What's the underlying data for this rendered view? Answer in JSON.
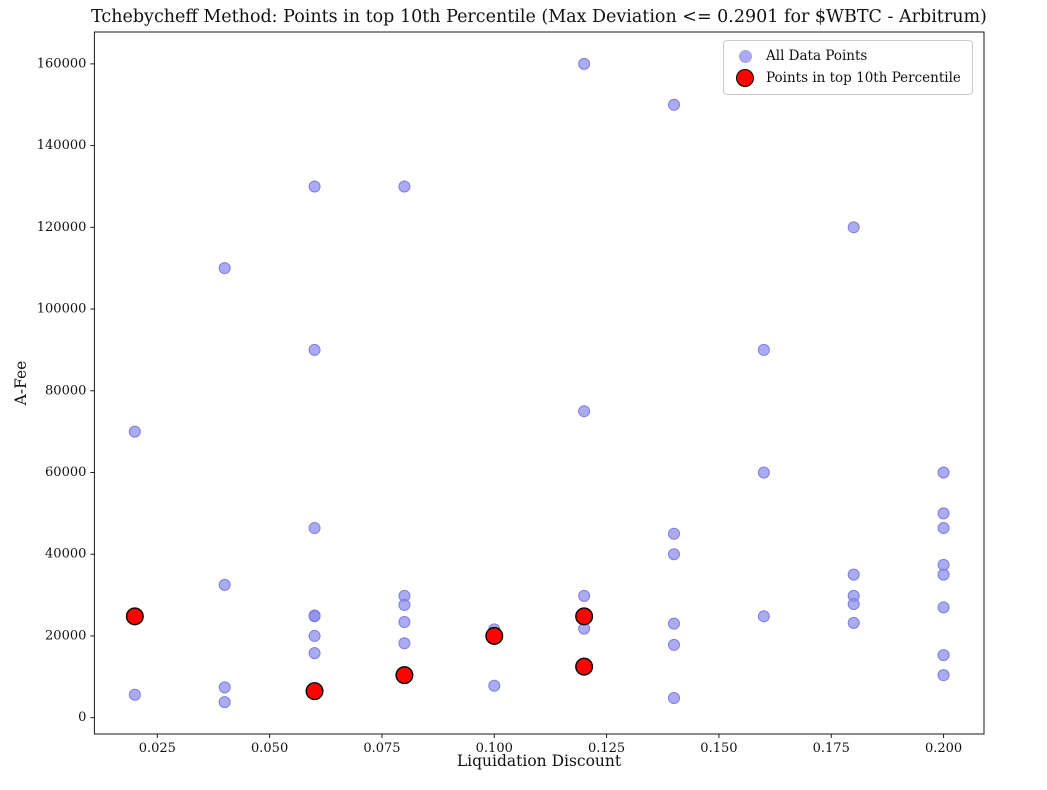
{
  "figure": {
    "title": "Tchebycheff Method: Points in top 10th Percentile (Max Deviation <= 0.2901 for $WBTC - Arbitrum)",
    "xlabel": "Liquidation Discount",
    "ylabel": "A-Fee"
  },
  "chart_data": {
    "type": "scatter",
    "title": "Tchebycheff Method: Points in top 10th Percentile (Max Deviation <= 0.2901 for $WBTC - Arbitrum)",
    "xlabel": "Liquidation Discount",
    "ylabel": "A-Fee",
    "xlim": [
      0.011,
      0.209
    ],
    "ylim": [
      -4000,
      167800
    ],
    "xticks": [
      0.025,
      0.05,
      0.075,
      0.1,
      0.125,
      0.15,
      0.175,
      0.2
    ],
    "xtick_labels": [
      "0.025",
      "0.050",
      "0.075",
      "0.100",
      "0.125",
      "0.150",
      "0.175",
      "0.200"
    ],
    "yticks": [
      0,
      20000,
      40000,
      60000,
      80000,
      100000,
      120000,
      140000,
      160000
    ],
    "ytick_labels": [
      "0",
      "20000",
      "40000",
      "60000",
      "80000",
      "100000",
      "120000",
      "140000",
      "160000"
    ],
    "grid": false,
    "legend_position": "upper right",
    "series": [
      {
        "name": "All Data Points",
        "color": "#8a8aec",
        "edge_color": "#7e7ee0",
        "fill_opacity": 0.72,
        "marker_radius": 5.5,
        "points": [
          [
            0.02,
            70000
          ],
          [
            0.02,
            5600
          ],
          [
            0.04,
            110000
          ],
          [
            0.04,
            32500
          ],
          [
            0.04,
            7400
          ],
          [
            0.04,
            3800
          ],
          [
            0.06,
            130000
          ],
          [
            0.06,
            90000
          ],
          [
            0.06,
            46400
          ],
          [
            0.06,
            25000
          ],
          [
            0.06,
            24800
          ],
          [
            0.06,
            20000
          ],
          [
            0.06,
            15800
          ],
          [
            0.08,
            130000
          ],
          [
            0.08,
            29800
          ],
          [
            0.08,
            27600
          ],
          [
            0.08,
            23400
          ],
          [
            0.08,
            18200
          ],
          [
            0.1,
            21600
          ],
          [
            0.1,
            7800
          ],
          [
            0.12,
            160000
          ],
          [
            0.12,
            75000
          ],
          [
            0.12,
            29800
          ],
          [
            0.12,
            21800
          ],
          [
            0.14,
            150000
          ],
          [
            0.14,
            45000
          ],
          [
            0.14,
            40000
          ],
          [
            0.14,
            23000
          ],
          [
            0.14,
            17800
          ],
          [
            0.14,
            4800
          ],
          [
            0.16,
            90000
          ],
          [
            0.16,
            60000
          ],
          [
            0.16,
            24800
          ],
          [
            0.18,
            120000
          ],
          [
            0.18,
            35000
          ],
          [
            0.18,
            29800
          ],
          [
            0.18,
            27800
          ],
          [
            0.18,
            23200
          ],
          [
            0.2,
            60000
          ],
          [
            0.2,
            50000
          ],
          [
            0.2,
            46400
          ],
          [
            0.2,
            37400
          ],
          [
            0.2,
            35000
          ],
          [
            0.2,
            27000
          ],
          [
            0.2,
            15300
          ],
          [
            0.2,
            10400
          ]
        ]
      },
      {
        "name": "Points in top 10th Percentile",
        "color": "#fe0202",
        "edge_color": "#000000",
        "fill_opacity": 1,
        "marker_radius": 8.3,
        "points": [
          [
            0.02,
            24800
          ],
          [
            0.06,
            6500
          ],
          [
            0.08,
            10400
          ],
          [
            0.1,
            20000
          ],
          [
            0.12,
            24800
          ],
          [
            0.12,
            12500
          ]
        ]
      }
    ]
  }
}
